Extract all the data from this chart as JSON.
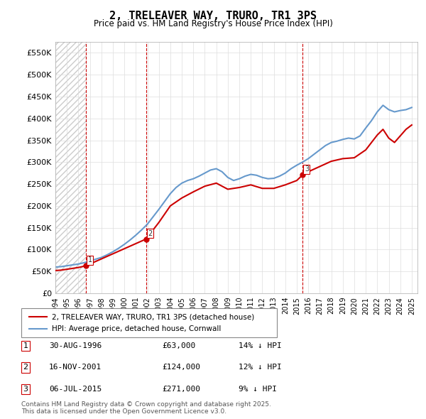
{
  "title": "2, TRELEAVER WAY, TRURO, TR1 3PS",
  "subtitle": "Price paid vs. HM Land Registry's House Price Index (HPI)",
  "xlim_start": 1994.0,
  "xlim_end": 2025.5,
  "ylim": [
    0,
    575000
  ],
  "yticks": [
    0,
    50000,
    100000,
    150000,
    200000,
    250000,
    300000,
    350000,
    400000,
    450000,
    500000,
    550000
  ],
  "ytick_labels": [
    "£0",
    "£50K",
    "£100K",
    "£150K",
    "£200K",
    "£250K",
    "£300K",
    "£350K",
    "£400K",
    "£450K",
    "£500K",
    "£550K"
  ],
  "sales": [
    {
      "date_num": 1996.66,
      "price": 63000,
      "label": "1"
    },
    {
      "date_num": 2001.88,
      "price": 124000,
      "label": "2"
    },
    {
      "date_num": 2015.52,
      "price": 271000,
      "label": "3"
    }
  ],
  "vlines": [
    1996.66,
    2001.88,
    2015.52
  ],
  "sale_color": "#cc0000",
  "hpi_color": "#6699cc",
  "legend_sale_label": "2, TRELEAVER WAY, TRURO, TR1 3PS (detached house)",
  "legend_hpi_label": "HPI: Average price, detached house, Cornwall",
  "table_entries": [
    {
      "num": "1",
      "date": "30-AUG-1996",
      "price": "£63,000",
      "hpi": "14% ↓ HPI"
    },
    {
      "num": "2",
      "date": "16-NOV-2001",
      "price": "£124,000",
      "hpi": "12% ↓ HPI"
    },
    {
      "num": "3",
      "date": "06-JUL-2015",
      "price": "£271,000",
      "hpi": "9% ↓ HPI"
    }
  ],
  "footnote": "Contains HM Land Registry data © Crown copyright and database right 2025.\nThis data is licensed under the Open Government Licence v3.0.",
  "hpi_x": [
    1994.0,
    1994.5,
    1995.0,
    1995.5,
    1996.0,
    1996.5,
    1997.0,
    1997.5,
    1998.0,
    1998.5,
    1999.0,
    1999.5,
    2000.0,
    2000.5,
    2001.0,
    2001.5,
    2002.0,
    2002.5,
    2003.0,
    2003.5,
    2004.0,
    2004.5,
    2005.0,
    2005.5,
    2006.0,
    2006.5,
    2007.0,
    2007.5,
    2008.0,
    2008.5,
    2009.0,
    2009.5,
    2010.0,
    2010.5,
    2011.0,
    2011.5,
    2012.0,
    2012.5,
    2013.0,
    2013.5,
    2014.0,
    2014.5,
    2015.0,
    2015.5,
    2016.0,
    2016.5,
    2017.0,
    2017.5,
    2018.0,
    2018.5,
    2019.0,
    2019.5,
    2020.0,
    2020.5,
    2021.0,
    2021.5,
    2022.0,
    2022.5,
    2023.0,
    2023.5,
    2024.0,
    2024.5,
    2025.0
  ],
  "hpi_y": [
    60000,
    61000,
    63000,
    65000,
    67000,
    70000,
    74000,
    78000,
    82000,
    88000,
    95000,
    103000,
    112000,
    122000,
    133000,
    145000,
    158000,
    175000,
    192000,
    210000,
    228000,
    242000,
    252000,
    258000,
    262000,
    268000,
    275000,
    282000,
    285000,
    278000,
    265000,
    258000,
    262000,
    268000,
    272000,
    270000,
    265000,
    262000,
    263000,
    268000,
    275000,
    285000,
    293000,
    300000,
    308000,
    318000,
    328000,
    338000,
    345000,
    348000,
    352000,
    355000,
    353000,
    360000,
    378000,
    395000,
    415000,
    430000,
    420000,
    415000,
    418000,
    420000,
    425000
  ],
  "sale_x": [
    1994.0,
    1994.5,
    1995.0,
    1995.5,
    1996.0,
    1996.5,
    1996.66,
    2001.88,
    2002.0,
    2002.5,
    2003.0,
    2004.0,
    2005.0,
    2006.0,
    2007.0,
    2008.0,
    2009.0,
    2010.0,
    2011.0,
    2012.0,
    2013.0,
    2014.0,
    2015.0,
    2015.52,
    2016.0,
    2017.0,
    2018.0,
    2019.0,
    2020.0,
    2021.0,
    2022.0,
    2022.5,
    2023.0,
    2023.5,
    2024.0,
    2024.5,
    2025.0
  ],
  "sale_y": [
    52000,
    53000,
    55000,
    57000,
    59000,
    62000,
    63000,
    124000,
    130000,
    145000,
    162000,
    200000,
    218000,
    232000,
    245000,
    252000,
    238000,
    242000,
    248000,
    240000,
    240000,
    248000,
    258000,
    271000,
    278000,
    290000,
    302000,
    308000,
    310000,
    328000,
    362000,
    375000,
    355000,
    345000,
    360000,
    375000,
    385000
  ]
}
